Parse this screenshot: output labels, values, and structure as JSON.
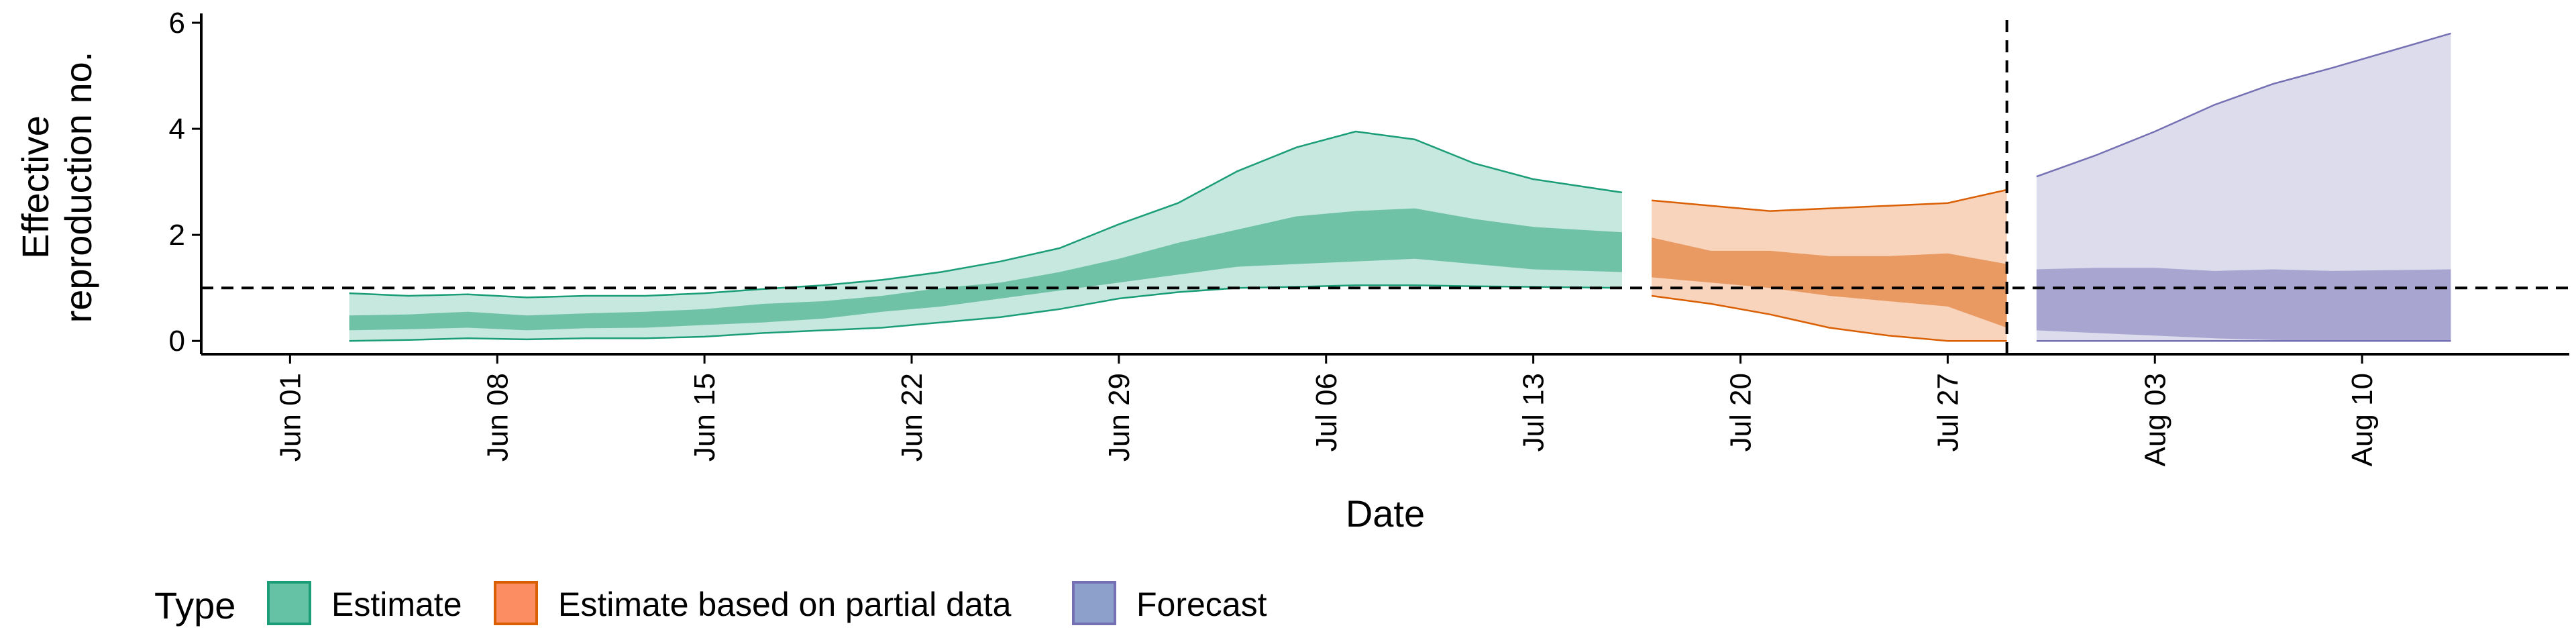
{
  "chart_data": {
    "type": "area",
    "xlabel": "Date",
    "ylabel_lines": [
      "Effective",
      "reproduction no."
    ],
    "x_range": [
      "2020-05-29",
      "2020-08-17"
    ],
    "ylim": [
      -0.25,
      6.05
    ],
    "y_ticks": [
      0,
      2,
      4,
      6
    ],
    "x_ticks": [
      {
        "date": "2020-06-01",
        "label": "Jun 01"
      },
      {
        "date": "2020-06-08",
        "label": "Jun 08"
      },
      {
        "date": "2020-06-15",
        "label": "Jun 15"
      },
      {
        "date": "2020-06-22",
        "label": "Jun 22"
      },
      {
        "date": "2020-06-29",
        "label": "Jun 29"
      },
      {
        "date": "2020-07-06",
        "label": "Jul 06"
      },
      {
        "date": "2020-07-13",
        "label": "Jul 13"
      },
      {
        "date": "2020-07-20",
        "label": "Jul 20"
      },
      {
        "date": "2020-07-27",
        "label": "Jul 27"
      },
      {
        "date": "2020-08-03",
        "label": "Aug 03"
      },
      {
        "date": "2020-08-10",
        "label": "Aug 10"
      }
    ],
    "reference_line_y": 1,
    "forecast_date": "2020-07-29",
    "grid": false,
    "legend": {
      "title": "Type",
      "position": "bottom-left",
      "entries": [
        {
          "label": "Estimate",
          "fill": "#66c2a5",
          "stroke": "#1b9e77"
        },
        {
          "label": "Estimate based on partial data",
          "fill": "#fc8d62",
          "stroke": "#d95f02"
        },
        {
          "label": "Forecast",
          "fill": "#8da0cb",
          "stroke": "#7570b3"
        }
      ]
    },
    "series": [
      {
        "type": "Estimate",
        "color": "#1b9e77",
        "outer_color": "#c6e8df",
        "inner_color": "#6fc2a6",
        "points": [
          {
            "date": "2020-06-03",
            "lo90": 0.0,
            "lo50": 0.2,
            "hi50": 0.48,
            "hi90": 0.9
          },
          {
            "date": "2020-06-05",
            "lo90": 0.02,
            "lo50": 0.22,
            "hi50": 0.5,
            "hi90": 0.85
          },
          {
            "date": "2020-06-07",
            "lo90": 0.05,
            "lo50": 0.25,
            "hi50": 0.55,
            "hi90": 0.88
          },
          {
            "date": "2020-06-09",
            "lo90": 0.03,
            "lo50": 0.2,
            "hi50": 0.48,
            "hi90": 0.82
          },
          {
            "date": "2020-06-11",
            "lo90": 0.05,
            "lo50": 0.24,
            "hi50": 0.52,
            "hi90": 0.85
          },
          {
            "date": "2020-06-13",
            "lo90": 0.05,
            "lo50": 0.25,
            "hi50": 0.55,
            "hi90": 0.85
          },
          {
            "date": "2020-06-15",
            "lo90": 0.08,
            "lo50": 0.3,
            "hi50": 0.6,
            "hi90": 0.9
          },
          {
            "date": "2020-06-17",
            "lo90": 0.15,
            "lo50": 0.35,
            "hi50": 0.7,
            "hi90": 0.98
          },
          {
            "date": "2020-06-19",
            "lo90": 0.2,
            "lo50": 0.42,
            "hi50": 0.75,
            "hi90": 1.05
          },
          {
            "date": "2020-06-21",
            "lo90": 0.25,
            "lo50": 0.55,
            "hi50": 0.85,
            "hi90": 1.15
          },
          {
            "date": "2020-06-23",
            "lo90": 0.35,
            "lo50": 0.65,
            "hi50": 1.0,
            "hi90": 1.3
          },
          {
            "date": "2020-06-25",
            "lo90": 0.45,
            "lo50": 0.8,
            "hi50": 1.1,
            "hi90": 1.5
          },
          {
            "date": "2020-06-27",
            "lo90": 0.6,
            "lo50": 0.95,
            "hi50": 1.3,
            "hi90": 1.75
          },
          {
            "date": "2020-06-29",
            "lo90": 0.8,
            "lo50": 1.1,
            "hi50": 1.55,
            "hi90": 2.2
          },
          {
            "date": "2020-07-01",
            "lo90": 0.92,
            "lo50": 1.25,
            "hi50": 1.85,
            "hi90": 2.6
          },
          {
            "date": "2020-07-03",
            "lo90": 1.0,
            "lo50": 1.4,
            "hi50": 2.1,
            "hi90": 3.2
          },
          {
            "date": "2020-07-05",
            "lo90": 1.02,
            "lo50": 1.45,
            "hi50": 2.35,
            "hi90": 3.65
          },
          {
            "date": "2020-07-07",
            "lo90": 1.05,
            "lo50": 1.5,
            "hi50": 2.45,
            "hi90": 3.95
          },
          {
            "date": "2020-07-09",
            "lo90": 1.05,
            "lo50": 1.55,
            "hi50": 2.5,
            "hi90": 3.8
          },
          {
            "date": "2020-07-11",
            "lo90": 1.03,
            "lo50": 1.45,
            "hi50": 2.3,
            "hi90": 3.35
          },
          {
            "date": "2020-07-13",
            "lo90": 1.02,
            "lo50": 1.35,
            "hi50": 2.15,
            "hi90": 3.05
          },
          {
            "date": "2020-07-16",
            "lo90": 1.0,
            "lo50": 1.3,
            "hi50": 2.05,
            "hi90": 2.8
          }
        ]
      },
      {
        "type": "Estimate based on partial data",
        "color": "#d95f02",
        "outer_color": "#f8d4bd",
        "inner_color": "#e99a62",
        "points": [
          {
            "date": "2020-07-17",
            "lo90": 0.85,
            "lo50": 1.2,
            "hi50": 1.95,
            "hi90": 2.65
          },
          {
            "date": "2020-07-19",
            "lo90": 0.7,
            "lo50": 1.1,
            "hi50": 1.7,
            "hi90": 2.55
          },
          {
            "date": "2020-07-21",
            "lo90": 0.5,
            "lo50": 1.0,
            "hi50": 1.7,
            "hi90": 2.45
          },
          {
            "date": "2020-07-23",
            "lo90": 0.25,
            "lo50": 0.85,
            "hi50": 1.6,
            "hi90": 2.5
          },
          {
            "date": "2020-07-25",
            "lo90": 0.1,
            "lo50": 0.75,
            "hi50": 1.6,
            "hi90": 2.55
          },
          {
            "date": "2020-07-27",
            "lo90": 0.0,
            "lo50": 0.65,
            "hi50": 1.65,
            "hi90": 2.6
          },
          {
            "date": "2020-07-29",
            "lo90": 0.0,
            "lo50": 0.25,
            "hi50": 1.45,
            "hi90": 2.85
          }
        ]
      },
      {
        "type": "Forecast",
        "color": "#7570b3",
        "outer_color": "#dcdcec",
        "inner_color": "#a8a5d1",
        "points": [
          {
            "date": "2020-07-30",
            "lo90": 0.0,
            "lo50": 0.2,
            "hi50": 1.35,
            "hi90": 3.1
          },
          {
            "date": "2020-08-01",
            "lo90": 0.0,
            "lo50": 0.15,
            "hi50": 1.38,
            "hi90": 3.5
          },
          {
            "date": "2020-08-03",
            "lo90": 0.0,
            "lo50": 0.1,
            "hi50": 1.38,
            "hi90": 3.95
          },
          {
            "date": "2020-08-05",
            "lo90": 0.0,
            "lo50": 0.05,
            "hi50": 1.32,
            "hi90": 4.45
          },
          {
            "date": "2020-08-07",
            "lo90": 0.0,
            "lo50": 0.02,
            "hi50": 1.35,
            "hi90": 4.85
          },
          {
            "date": "2020-08-09",
            "lo90": 0.0,
            "lo50": 0.0,
            "hi50": 1.32,
            "hi90": 5.15
          },
          {
            "date": "2020-08-13",
            "lo90": 0.0,
            "lo50": 0.0,
            "hi50": 1.35,
            "hi90": 5.8
          }
        ]
      }
    ]
  }
}
